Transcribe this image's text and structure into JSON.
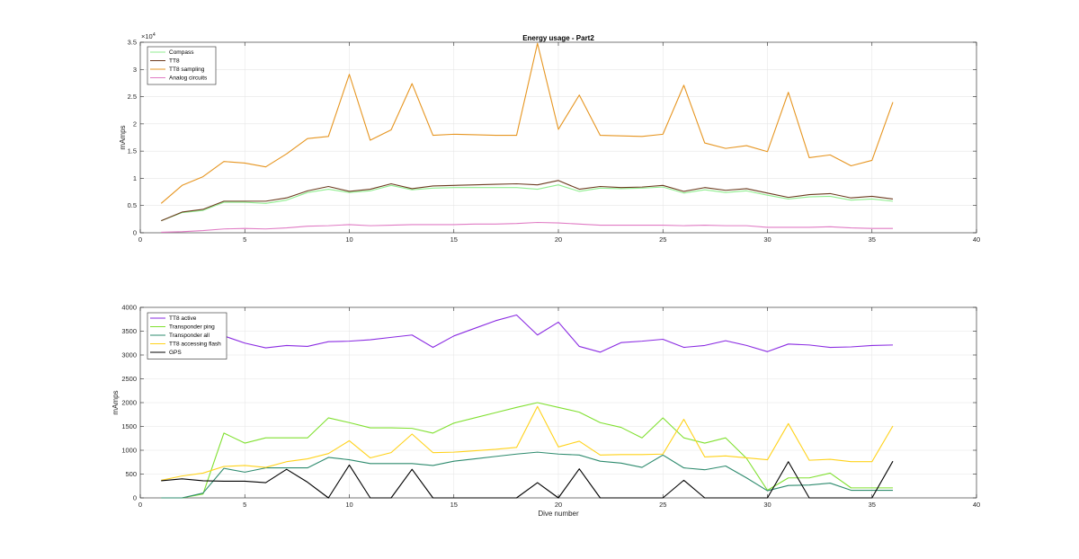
{
  "chart_data": [
    {
      "type": "line",
      "title": "Energy usage - Part2",
      "xlabel": "",
      "ylabel": "mAmps",
      "y_exponent_label": "×10",
      "y_exponent_power": "4",
      "xlim": [
        0,
        40
      ],
      "ylim": [
        0,
        35000
      ],
      "xticks": [
        0,
        5,
        10,
        15,
        20,
        25,
        30,
        35,
        40
      ],
      "yticks": [
        0,
        5000,
        10000,
        15000,
        20000,
        25000,
        30000,
        35000
      ],
      "ytick_labels": [
        "0",
        "0.5",
        "1",
        "1.5",
        "2",
        "2.5",
        "3",
        "3.5"
      ],
      "grid": true,
      "legend_position": "top-left",
      "x": [
        1,
        2,
        3,
        4,
        5,
        6,
        7,
        8,
        9,
        10,
        11,
        12,
        13,
        14,
        15,
        16,
        17,
        18,
        19,
        20,
        21,
        22,
        23,
        24,
        25,
        26,
        27,
        28,
        29,
        30,
        31,
        32,
        33,
        34,
        35,
        36
      ],
      "series": [
        {
          "name": "Compass",
          "color": "#90ee90",
          "values": [
            2200,
            3700,
            4100,
            5600,
            5600,
            5400,
            6000,
            7400,
            8000,
            7400,
            7700,
            8700,
            7900,
            8200,
            8300,
            8300,
            8300,
            8300,
            8000,
            8800,
            7600,
            8200,
            8100,
            8200,
            8400,
            7300,
            7900,
            7400,
            7700,
            6900,
            6200,
            6600,
            6700,
            6000,
            6200,
            5800
          ]
        },
        {
          "name": "TT8",
          "color": "#6b3a1e",
          "values": [
            2200,
            3800,
            4300,
            5800,
            5800,
            5800,
            6400,
            7700,
            8500,
            7600,
            8000,
            9000,
            8100,
            8600,
            8700,
            8800,
            8900,
            9000,
            8800,
            9600,
            8000,
            8500,
            8300,
            8400,
            8700,
            7600,
            8300,
            7800,
            8100,
            7300,
            6500,
            7000,
            7200,
            6400,
            6700,
            6200
          ]
        },
        {
          "name": "TT8 sampling",
          "color": "#e69520",
          "values": [
            5400,
            8700,
            10300,
            13100,
            12800,
            12100,
            14500,
            17300,
            17700,
            29100,
            17000,
            18900,
            27400,
            17900,
            18100,
            18000,
            17900,
            17900,
            34800,
            19000,
            25300,
            17900,
            17800,
            17700,
            18100,
            27100,
            16500,
            15500,
            16000,
            14900,
            25800,
            13800,
            14300,
            12300,
            13300,
            24000
          ]
        },
        {
          "name": "Analog circuits",
          "color": "#e07bc4",
          "values": [
            100,
            200,
            400,
            700,
            800,
            700,
            900,
            1200,
            1300,
            1500,
            1300,
            1400,
            1500,
            1500,
            1500,
            1600,
            1600,
            1700,
            1900,
            1800,
            1600,
            1400,
            1400,
            1400,
            1400,
            1300,
            1400,
            1300,
            1300,
            1000,
            1000,
            1000,
            1100,
            900,
            800,
            800
          ]
        }
      ]
    },
    {
      "type": "line",
      "title": "",
      "xlabel": "Dive number",
      "ylabel": "mAmps",
      "xlim": [
        0,
        40
      ],
      "ylim": [
        0,
        4000
      ],
      "xticks": [
        0,
        5,
        10,
        15,
        20,
        25,
        30,
        35,
        40
      ],
      "yticks": [
        0,
        500,
        1000,
        1500,
        2000,
        2500,
        3000,
        3500,
        4000
      ],
      "ytick_labels": [
        "0",
        "500",
        "1000",
        "1500",
        "2000",
        "2500",
        "3000",
        "3500",
        "4000"
      ],
      "grid": true,
      "legend_position": "top-left",
      "x": [
        1,
        2,
        3,
        4,
        5,
        6,
        7,
        8,
        9,
        10,
        11,
        12,
        13,
        14,
        15,
        16,
        17,
        18,
        19,
        20,
        21,
        22,
        23,
        24,
        25,
        26,
        27,
        28,
        29,
        30,
        31,
        32,
        33,
        34,
        35,
        36
      ],
      "series": [
        {
          "name": "TT8 active",
          "color": "#8a2be2",
          "values": [
            2950,
            3100,
            3200,
            3400,
            3250,
            3150,
            3200,
            3180,
            3280,
            3290,
            3320,
            3370,
            3420,
            3160,
            3400,
            3560,
            3720,
            3840,
            3420,
            3690,
            3180,
            3060,
            3260,
            3290,
            3330,
            3160,
            3200,
            3300,
            3200,
            3070,
            3230,
            3210,
            3160,
            3170,
            3200,
            3210
          ]
        },
        {
          "name": "Transponder ping",
          "color": "#80e030",
          "values": [
            0,
            0,
            80,
            1360,
            1150,
            1260,
            1260,
            1260,
            1680,
            1580,
            1470,
            1470,
            1460,
            1360,
            1570,
            1680,
            1790,
            1900,
            2000,
            1900,
            1800,
            1580,
            1480,
            1260,
            1680,
            1260,
            1150,
            1260,
            830,
            160,
            420,
            420,
            520,
            210,
            210,
            210
          ]
        },
        {
          "name": "Transponder all",
          "color": "#2e8b6e",
          "values": [
            0,
            0,
            100,
            620,
            540,
            630,
            630,
            630,
            850,
            800,
            720,
            720,
            720,
            680,
            770,
            820,
            870,
            920,
            960,
            920,
            900,
            770,
            730,
            640,
            900,
            630,
            590,
            670,
            420,
            150,
            260,
            270,
            310,
            160,
            160,
            160
          ]
        },
        {
          "name": "TT8 accessing flash",
          "color": "#ffd21a",
          "values": [
            370,
            460,
            520,
            660,
            680,
            640,
            760,
            820,
            930,
            1200,
            840,
            950,
            1340,
            950,
            960,
            990,
            1020,
            1060,
            1920,
            1070,
            1190,
            900,
            910,
            910,
            920,
            1650,
            860,
            880,
            840,
            800,
            1560,
            790,
            810,
            760,
            760,
            1510
          ]
        },
        {
          "name": "GPS",
          "color": "#000000",
          "values": [
            360,
            400,
            360,
            350,
            350,
            320,
            600,
            330,
            0,
            690,
            0,
            0,
            600,
            0,
            0,
            0,
            0,
            0,
            320,
            0,
            610,
            0,
            0,
            0,
            0,
            370,
            0,
            0,
            0,
            0,
            760,
            0,
            0,
            0,
            0,
            770
          ]
        }
      ]
    }
  ]
}
